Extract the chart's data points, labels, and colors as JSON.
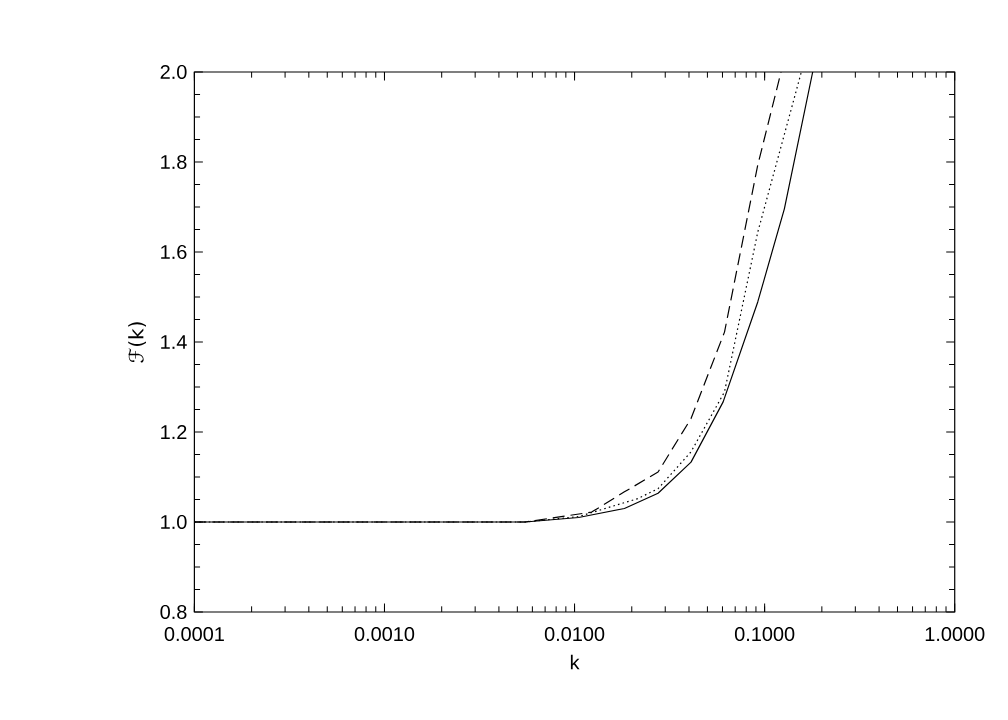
{
  "chart_data": {
    "type": "line",
    "xlabel": "k",
    "ylabel": "ℱ(k)",
    "log": "x",
    "grid": false,
    "marker": "none",
    "xlim": [
      0.0001,
      1.0
    ],
    "ylim": [
      0.8,
      2.0
    ],
    "xticks": [
      {
        "value": 0.0001,
        "label": "0.0001"
      },
      {
        "value": 0.001,
        "label": "0.0010"
      },
      {
        "value": 0.01,
        "label": "0.0100"
      },
      {
        "value": 0.1,
        "label": "0.1000"
      },
      {
        "value": 1.0,
        "label": "1.0000"
      }
    ],
    "yticks": [
      {
        "value": 0.8,
        "label": "0.8"
      },
      {
        "value": 1.0,
        "label": "1.0"
      },
      {
        "value": 1.2,
        "label": "1.2"
      },
      {
        "value": 1.4,
        "label": "1.4"
      },
      {
        "value": 1.6,
        "label": "1.6"
      },
      {
        "value": 1.8,
        "label": "1.8"
      },
      {
        "value": 2.0,
        "label": "2.0"
      }
    ],
    "series": [
      {
        "color": "#000000",
        "line_style": "solid",
        "x": [
          0.0001,
          0.001,
          0.0055,
          0.0105,
          0.0183,
          0.0275,
          0.041,
          0.0605,
          0.092,
          0.127,
          0.179
        ],
        "values": [
          1.0,
          1.0,
          1.0,
          1.01,
          1.03,
          1.064,
          1.133,
          1.267,
          1.489,
          1.696,
          2.0
        ]
      },
      {
        "color": "#000000",
        "line_style": "dotted",
        "x": [
          0.0001,
          0.001,
          0.0055,
          0.0105,
          0.0215,
          0.0275,
          0.041,
          0.0615,
          0.092,
          0.156
        ],
        "values": [
          1.0,
          1.0,
          1.0,
          1.012,
          1.052,
          1.074,
          1.156,
          1.289,
          1.644,
          2.0
        ]
      },
      {
        "color": "#000000",
        "line_style": "dashed",
        "x": [
          0.0001,
          0.001,
          0.0055,
          0.0123,
          0.0183,
          0.0275,
          0.041,
          0.0615,
          0.092,
          0.122
        ],
        "values": [
          1.0,
          1.0,
          1.0,
          1.022,
          1.067,
          1.111,
          1.23,
          1.422,
          1.793,
          2.0
        ]
      }
    ]
  }
}
